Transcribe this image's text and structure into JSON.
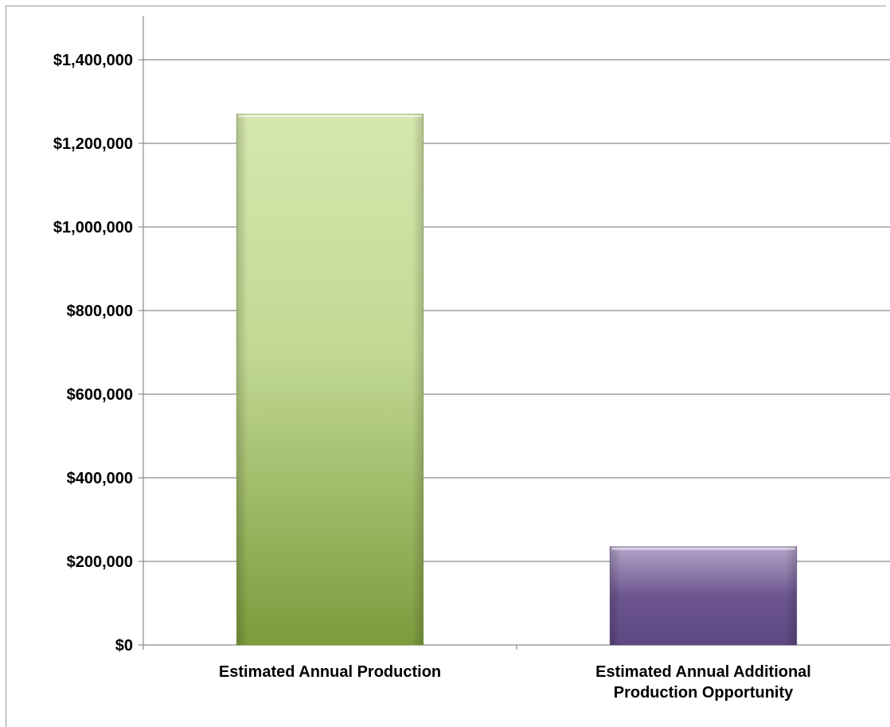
{
  "chart_data": {
    "type": "bar",
    "title": "",
    "xlabel": "",
    "ylabel": "",
    "categories": [
      [
        "Estimated Annual Production"
      ],
      [
        "Estimated Annual Additional",
        "Production Opportunity"
      ]
    ],
    "values": [
      1270000,
      235000
    ],
    "ylim": [
      0,
      1400000
    ],
    "ytick_values": [
      0,
      200000,
      400000,
      600000,
      800000,
      1000000,
      1200000,
      1400000
    ],
    "ytick_labels": [
      "$0",
      "$200,000",
      "$400,000",
      "$600,000",
      "$800,000",
      "$1,000,000",
      "$1,200,000",
      "$1,400,000"
    ],
    "grid": true,
    "legend": "none"
  },
  "colors": {
    "bar_1_top": "#d6e7ae",
    "bar_1_mid": "#c1d993",
    "bar_1_bottom": "#7c9b3c",
    "bar_2_top": "#b3a3c8",
    "bar_2_mid": "#6d5690",
    "bar_2_bottom": "#5e4882",
    "grid": "#8c8c8c",
    "axis": "#8c8c8c"
  }
}
